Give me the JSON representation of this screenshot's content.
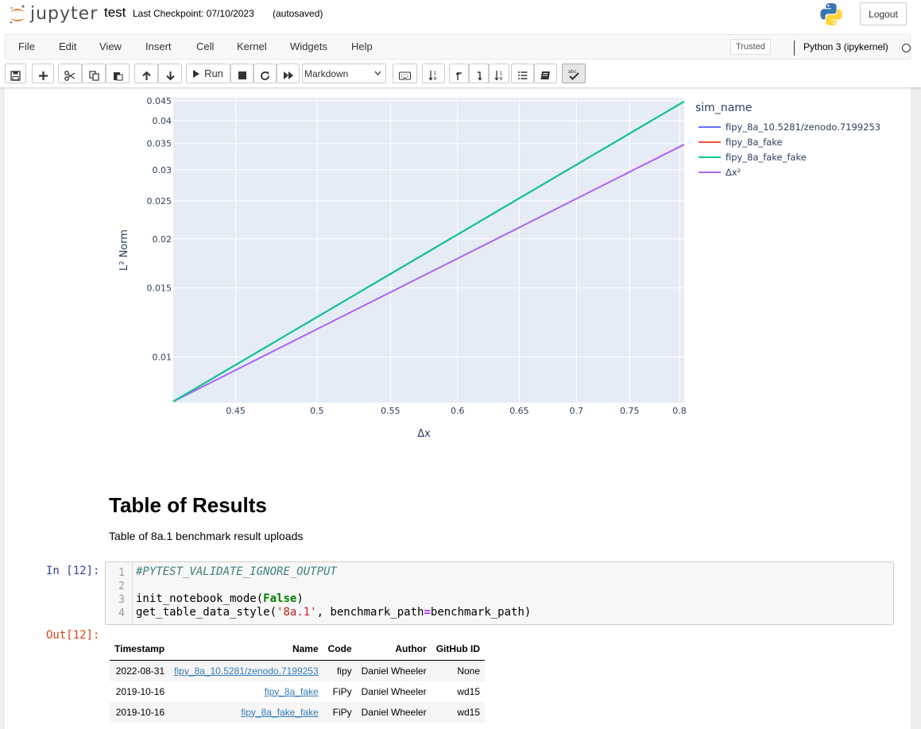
{
  "header": {
    "logo_text": "jupyter",
    "notebook_name": "test",
    "checkpoint": "Last Checkpoint: 07/10/2023",
    "autosave": "(autosaved)",
    "logout_label": "Logout"
  },
  "menubar": {
    "items": [
      "File",
      "Edit",
      "View",
      "Insert",
      "Cell",
      "Kernel",
      "Widgets",
      "Help"
    ],
    "trusted": "Trusted",
    "kernel_name": "Python 3 (ipykernel)"
  },
  "toolbar": {
    "run_label": "Run",
    "cell_type": "Markdown",
    "icons": [
      "save-icon",
      "plus-icon",
      "cut-icon",
      "copy-icon",
      "paste-icon",
      "arrow-up-icon",
      "arrow-down-icon",
      "play-icon",
      "stop-icon",
      "restart-icon",
      "fast-forward-icon",
      "keyboard-icon",
      "sort-icon",
      "move-up-icon",
      "move-down-icon",
      "sort-alt-icon",
      "list-icon",
      "book-icon",
      "spellcheck-icon"
    ]
  },
  "chart_data": {
    "type": "line",
    "x_scale": "log",
    "y_scale": "log",
    "xlabel": "Δx",
    "ylabel": "L² Norm",
    "xlim": [
      0.415,
      0.805
    ],
    "ylim": [
      0.00765,
      0.0458
    ],
    "x_ticks": [
      "0.45",
      "0.5",
      "0.55",
      "0.6",
      "0.65",
      "0.7",
      "0.75",
      "0.8"
    ],
    "y_ticks": [
      "0.01",
      "0.015",
      "0.02",
      "0.025",
      "0.03",
      "0.035",
      "0.04",
      "0.045"
    ],
    "legend_title": "sim_name",
    "legend_position": "right",
    "grid": true,
    "series": [
      {
        "name": "fipy_8a_10.5281/zenodo.7199253",
        "color": "#636efa",
        "x": [
          0.415,
          0.805
        ],
        "y": [
          0.0077,
          0.0448
        ]
      },
      {
        "name": "fipy_8a_fake",
        "color": "#ef553b",
        "x": [
          0.415,
          0.805
        ],
        "y": [
          0.0077,
          0.0448
        ]
      },
      {
        "name": "fipy_8a_fake_fake",
        "color": "#00cc96",
        "x": [
          0.415,
          0.805
        ],
        "y": [
          0.0077,
          0.0448
        ]
      },
      {
        "name": "Δx²",
        "color": "#ab63fa",
        "x": [
          0.415,
          0.805
        ],
        "y": [
          0.0077,
          0.0348
        ]
      }
    ]
  },
  "markdown": {
    "heading": "Table of Results",
    "text": "Table of 8a.1 benchmark result uploads"
  },
  "code_cell": {
    "prompt_in": "In [12]:",
    "prompt_out": "Out[12]:",
    "line_numbers": [
      "1",
      "2",
      "3",
      "4"
    ],
    "line1_comment": "#PYTEST_VALIDATE_IGNORE_OUTPUT",
    "line3_func": "init_notebook_mode(",
    "line3_kw": "False",
    "line3_end": ")",
    "line4_func": "get_table_data_style(",
    "line4_str": "'8a.1'",
    "line4_mid": ", benchmark_path",
    "line4_op": "=",
    "line4_end": "benchmark_path)"
  },
  "table": {
    "headers": [
      "Timestamp",
      "Name",
      "Code",
      "Author",
      "GitHub ID"
    ],
    "rows": [
      [
        "2022-08-31",
        "fipy_8a_10.5281/zenodo.7199253",
        "fipy",
        "Daniel Wheeler",
        "None"
      ],
      [
        "2019-10-16",
        "fipy_8a_fake",
        "FiPy",
        "Daniel Wheeler",
        "wd15"
      ],
      [
        "2019-10-16",
        "fipy_8a_fake_fake",
        "FiPy",
        "Daniel Wheeler",
        "wd15"
      ]
    ]
  },
  "colors": {
    "plot_bg": "#e5ecf6",
    "link": "#337ab7",
    "in_prompt": "#303f9f",
    "out_prompt": "#d84315"
  }
}
